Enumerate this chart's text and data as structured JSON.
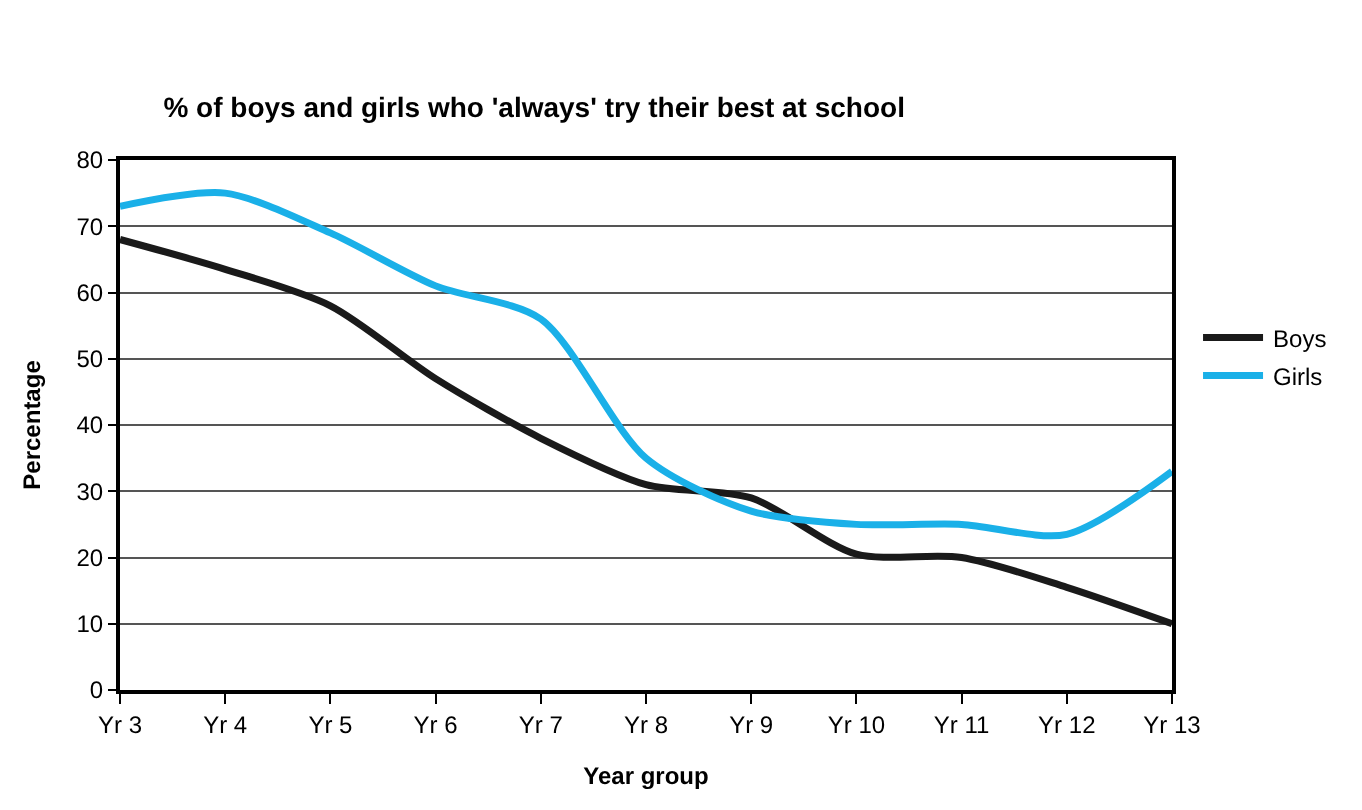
{
  "chart_data": {
    "type": "line",
    "title": "% of boys and girls who 'always' try their best at school",
    "xlabel": "Year group",
    "ylabel": "Percentage",
    "categories": [
      "Yr 3",
      "Yr 4",
      "Yr 5",
      "Yr 6",
      "Yr 7",
      "Yr 8",
      "Yr 9",
      "Yr 10",
      "Yr 11",
      "Yr 12",
      "Yr 13"
    ],
    "series": [
      {
        "name": "Boys",
        "color": "#1a1a1a",
        "values": [
          68,
          63.5,
          58,
          47,
          38,
          31,
          29,
          20.5,
          20,
          15.5,
          10
        ]
      },
      {
        "name": "Girls",
        "color": "#1ab0e8",
        "values": [
          73,
          75,
          69,
          61,
          56,
          35,
          27,
          25,
          25,
          23.5,
          33
        ]
      }
    ],
    "ylim": [
      0,
      80
    ],
    "yticks": [
      0,
      10,
      20,
      30,
      40,
      50,
      60,
      70,
      80
    ],
    "grid": "y",
    "legend": "right",
    "marker": "none"
  }
}
